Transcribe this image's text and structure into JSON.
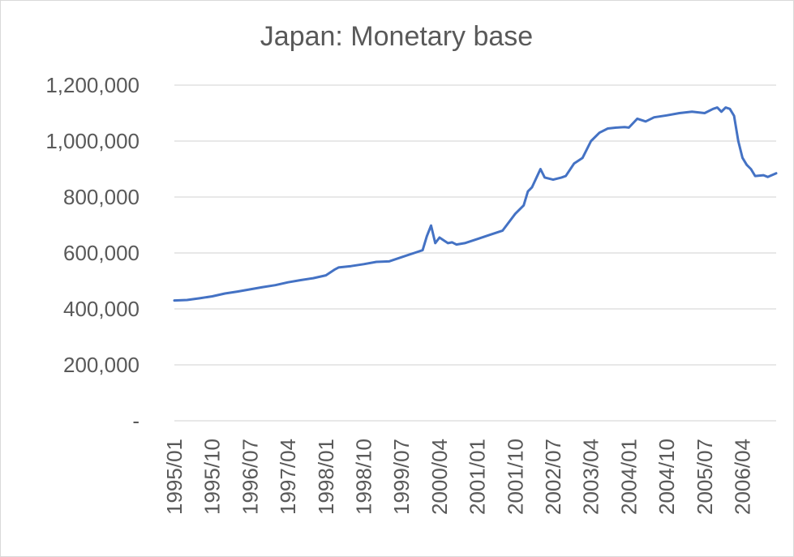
{
  "chart_data": {
    "type": "line",
    "title": "Japan: Monetary base",
    "ylim": [
      0,
      1200000
    ],
    "y_ticks": [
      {
        "value": 0,
        "label": "-"
      },
      {
        "value": 200000,
        "label": "200,000"
      },
      {
        "value": 400000,
        "label": "400,000"
      },
      {
        "value": 600000,
        "label": "600,000"
      },
      {
        "value": 800000,
        "label": "800,000"
      },
      {
        "value": 1000000,
        "label": "1,000,000"
      },
      {
        "value": 1200000,
        "label": "1,200,000"
      }
    ],
    "x_start": "1995/01",
    "x_end": "2006/12",
    "x_tick_labels": [
      "1995/01",
      "1995/10",
      "1996/07",
      "1997/04",
      "1998/01",
      "1998/10",
      "1999/07",
      "2000/04",
      "2001/01",
      "2001/10",
      "2002/07",
      "2003/04",
      "2004/01",
      "2004/10",
      "2005/07",
      "2006/04"
    ],
    "grid": "horizontal",
    "legend": "none",
    "line_color": "#4472c4",
    "series": [
      {
        "points": [
          [
            "1995/01",
            430000
          ],
          [
            "1995/04",
            432000
          ],
          [
            "1995/07",
            438000
          ],
          [
            "1995/10",
            445000
          ],
          [
            "1996/01",
            455000
          ],
          [
            "1996/04",
            462000
          ],
          [
            "1996/07",
            470000
          ],
          [
            "1996/10",
            478000
          ],
          [
            "1997/01",
            485000
          ],
          [
            "1997/04",
            495000
          ],
          [
            "1997/07",
            503000
          ],
          [
            "1997/10",
            510000
          ],
          [
            "1998/01",
            520000
          ],
          [
            "1998/03",
            540000
          ],
          [
            "1998/04",
            548000
          ],
          [
            "1998/07",
            553000
          ],
          [
            "1998/10",
            560000
          ],
          [
            "1999/01",
            568000
          ],
          [
            "1999/04",
            570000
          ],
          [
            "1999/07",
            585000
          ],
          [
            "1999/10",
            600000
          ],
          [
            "1999/12",
            610000
          ],
          [
            "2000/01",
            660000
          ],
          [
            "2000/02",
            698000
          ],
          [
            "2000/03",
            635000
          ],
          [
            "2000/04",
            655000
          ],
          [
            "2000/06",
            635000
          ],
          [
            "2000/07",
            638000
          ],
          [
            "2000/08",
            630000
          ],
          [
            "2000/10",
            635000
          ],
          [
            "2001/01",
            650000
          ],
          [
            "2001/04",
            665000
          ],
          [
            "2001/07",
            680000
          ],
          [
            "2001/08",
            700000
          ],
          [
            "2001/10",
            740000
          ],
          [
            "2001/12",
            770000
          ],
          [
            "2002/01",
            820000
          ],
          [
            "2002/02",
            835000
          ],
          [
            "2002/04",
            900000
          ],
          [
            "2002/05",
            870000
          ],
          [
            "2002/07",
            862000
          ],
          [
            "2002/09",
            870000
          ],
          [
            "2002/10",
            875000
          ],
          [
            "2002/12",
            920000
          ],
          [
            "2003/02",
            940000
          ],
          [
            "2003/04",
            1000000
          ],
          [
            "2003/06",
            1030000
          ],
          [
            "2003/08",
            1045000
          ],
          [
            "2003/10",
            1048000
          ],
          [
            "2003/12",
            1050000
          ],
          [
            "2004/01",
            1048000
          ],
          [
            "2004/03",
            1080000
          ],
          [
            "2004/05",
            1070000
          ],
          [
            "2004/07",
            1085000
          ],
          [
            "2004/10",
            1092000
          ],
          [
            "2005/01",
            1100000
          ],
          [
            "2005/04",
            1105000
          ],
          [
            "2005/07",
            1100000
          ],
          [
            "2005/09",
            1115000
          ],
          [
            "2005/10",
            1120000
          ],
          [
            "2005/11",
            1105000
          ],
          [
            "2005/12",
            1120000
          ],
          [
            "2006/01",
            1115000
          ],
          [
            "2006/02",
            1090000
          ],
          [
            "2006/03",
            1000000
          ],
          [
            "2006/04",
            940000
          ],
          [
            "2006/05",
            915000
          ],
          [
            "2006/06",
            900000
          ],
          [
            "2006/07",
            875000
          ],
          [
            "2006/09",
            878000
          ],
          [
            "2006/10",
            872000
          ],
          [
            "2006/12",
            885000
          ]
        ]
      }
    ]
  }
}
